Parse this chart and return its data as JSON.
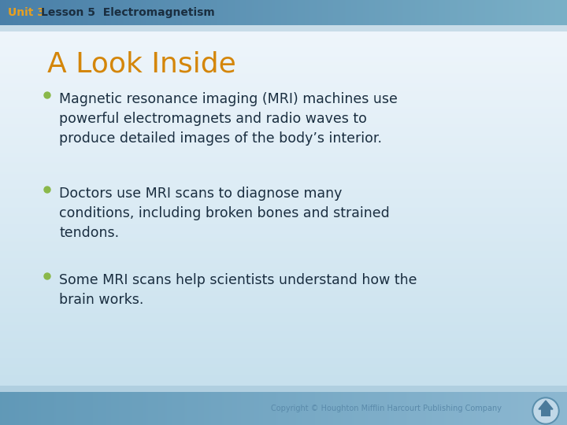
{
  "header_unit3_text": "Unit 3",
  "header_unit3_color": "#e8a020",
  "header_lesson_text": "Lesson 5  Electromagnetism",
  "header_lesson_color": "#1a2e40",
  "header_bg_left": "#4a7fa8",
  "header_bg_right": "#7aafc8",
  "title": "A Look Inside",
  "title_color": "#d4860a",
  "title_fontsize": 26,
  "bullet_color": "#8ab84a",
  "bullet_text_color": "#1a2e40",
  "bullet_fontsize": 12.5,
  "bullets": [
    "Magnetic resonance imaging (MRI) machines use\npowerful electromagnets and radio waves to\nproduce detailed images of the body’s interior.",
    "Doctors use MRI scans to diagnose many\nconditions, including broken bones and strained\ntendons.",
    "Some MRI scans help scientists understand how the\nbrain works."
  ],
  "footer_text": "Copyright © Houghton Mifflin Harcourt Publishing Company",
  "footer_color": "#5a8aaa",
  "footer_bg_left": "#6a9ec0",
  "footer_bg_right": "#90bdd4"
}
